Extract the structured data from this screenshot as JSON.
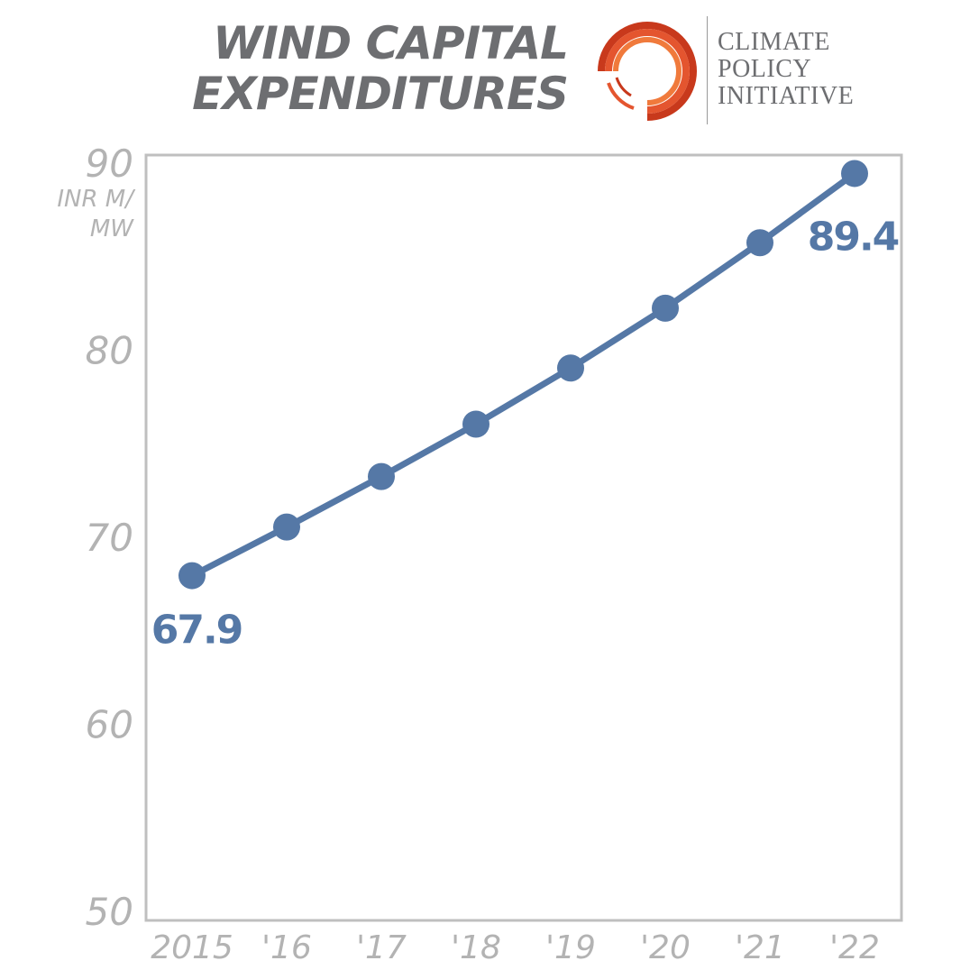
{
  "header": {
    "title_line1": "WIND CAPITAL",
    "title_line2": "EXPENDITURES"
  },
  "logo": {
    "line1": "CLIMATE",
    "line2": "POLICY",
    "line3": "INITIATIVE",
    "colors": [
      "#e4552f",
      "#c8391c",
      "#f07a3c"
    ]
  },
  "chart_data": {
    "type": "line",
    "title": "WIND CAPITAL EXPENDITURES",
    "ylabel": "INR M/ MW",
    "unit_line1": "INR M/",
    "unit_line2": "MW",
    "categories": [
      "2015",
      "'16",
      "'17",
      "'18",
      "'19",
      "'20",
      "'21",
      "'22"
    ],
    "series": [
      {
        "values": [
          67.9,
          70.5,
          73.2,
          76.0,
          79.0,
          82.2,
          85.7,
          89.4
        ]
      }
    ],
    "ylim": [
      50,
      90
    ],
    "yticks": [
      50,
      60,
      70,
      80,
      90
    ],
    "data_labels": [
      {
        "index": 0,
        "text": "67.9"
      },
      {
        "index": 7,
        "text": "89.4"
      }
    ],
    "grid": false,
    "color": "#5578a6"
  }
}
